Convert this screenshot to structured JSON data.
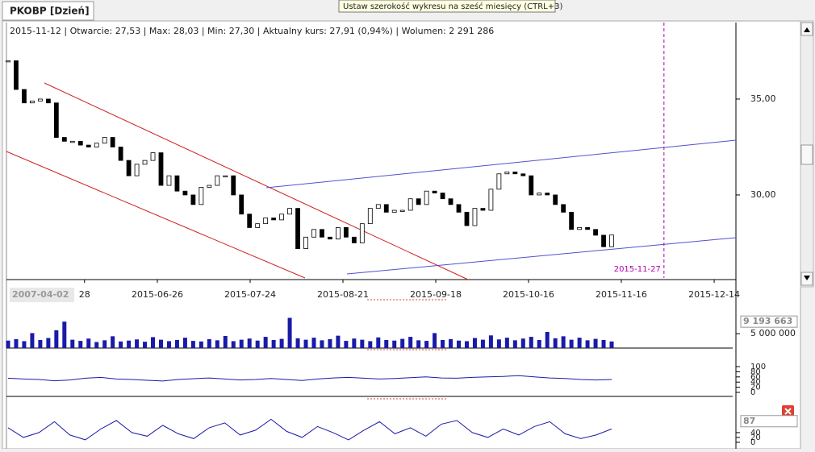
{
  "window": {
    "tab": "PKOBP [Dzień]",
    "tooltip": "Ustaw szerokość wykresu na sześć miesięcy (CTRL+3)",
    "info": [
      "2015-11-12",
      "Otwarcie: 27,53",
      "Max: 28,03",
      "Min: 27,30",
      "Aktualny kurs: 27,91 (0,94%)",
      "Wolumen: 2 291 286"
    ]
  },
  "chart_data": [
    {
      "type": "candlestick",
      "range_start": "2007-04-02",
      "up_color": "#ffffff",
      "down_color": "#000000",
      "values": [
        37,
        35.5,
        34.8,
        34.9,
        35,
        34.8,
        33,
        32.8,
        32.8,
        32.6,
        32.5,
        32.7,
        33,
        32.5,
        31.8,
        31,
        31.6,
        31.8,
        32.2,
        30.5,
        31,
        30.2,
        30,
        29.5,
        30.4,
        30.5,
        31,
        31,
        30,
        29,
        28.3,
        28.5,
        28.8,
        28.7,
        29,
        29.3,
        27.2,
        27.8,
        28.2,
        27.8,
        27.7,
        28.3,
        27.8,
        27.5,
        28.5,
        29.3,
        29.5,
        29.1,
        29.2,
        29.2,
        29.8,
        29.5,
        30.2,
        30.1,
        29.8,
        29.5,
        29.1,
        28.4,
        29.3,
        29.2,
        30.3,
        31.1,
        31.2,
        31.1,
        31,
        30,
        30.1,
        30,
        29.5,
        29.1,
        28.2,
        28.3,
        28.2,
        27.9,
        27.3,
        27.91
      ],
      "xlim": [
        -0.2,
        90.44
      ],
      "ylim": [
        25.67,
        38.99
      ],
      "yticks": [
        {
          "value": 35,
          "label": "35,00"
        },
        {
          "value": 30,
          "label": "30,00"
        }
      ],
      "xticks": [
        {
          "value": 9.5,
          "label": "28"
        },
        {
          "value": 18.55,
          "label": "2015-06-26"
        },
        {
          "value": 30.08,
          "label": "2015-07-24"
        },
        {
          "value": 41.61,
          "label": "2015-08-21"
        },
        {
          "value": 53.14,
          "label": "2015-09-18"
        },
        {
          "value": 64.67,
          "label": "2015-10-16"
        },
        {
          "value": 76.2,
          "label": "2015-11-16"
        },
        {
          "value": 87.74,
          "label": "2015-12-14"
        }
      ],
      "vline": {
        "value": 81.5,
        "label": "2015-11-27",
        "color": "#b000b0"
      }
    },
    {
      "type": "bar",
      "color": "#1a1aa8",
      "values": [
        2600000,
        3100000,
        2400000,
        5200000,
        2800000,
        3500000,
        6200000,
        9193663,
        2900000,
        2500000,
        3300000,
        2100000,
        2700000,
        4100000,
        2300000,
        2600000,
        3000000,
        2200000,
        3800000,
        2900000,
        2400000,
        2800000,
        3600000,
        2500000,
        2300000,
        3100000,
        2700000,
        4200000,
        2400000,
        2900000,
        3300000,
        2600000,
        3900000,
        2800000,
        3200000,
        10500000,
        3400000,
        2900000,
        3600000,
        2700000,
        3100000,
        4300000,
        2500000,
        3300000,
        2900000,
        2400000,
        3700000,
        2800000,
        2600000,
        3200000,
        3900000,
        2700000,
        2500000,
        5200000,
        2800000,
        3100000,
        2600000,
        2400000,
        3500000,
        2900000,
        4400000,
        3000000,
        3600000,
        2700000,
        3300000,
        3900000,
        2800000,
        5600000,
        3400000,
        4100000,
        2900000,
        3600000,
        2700000,
        3200000,
        2800000,
        2291286
      ],
      "xlim": [
        -0.2,
        90.44
      ],
      "ylim": [
        0,
        11200000
      ],
      "yticks": [
        {
          "value": 5000000,
          "label": "5 000 000"
        }
      ],
      "marker": {
        "value": 9193663,
        "label": "9 193 663"
      }
    },
    {
      "type": "line",
      "color": "#1a1aa8",
      "values": [
        55,
        52,
        50,
        45,
        48,
        55,
        58,
        52,
        50,
        47,
        44,
        50,
        53,
        56,
        52,
        48,
        50,
        54,
        50,
        46,
        52,
        56,
        58,
        55,
        52,
        54,
        57,
        60,
        56,
        55,
        58,
        60,
        62,
        65,
        60,
        56,
        54,
        50,
        48,
        50
      ],
      "xlim": [
        -0.1,
        47.03
      ],
      "ylim": [
        -15.6,
        109.4
      ],
      "yticks": [
        0,
        20,
        40,
        60,
        80,
        100
      ]
    },
    {
      "type": "line",
      "color": "#1a1aa8",
      "values": [
        60,
        20,
        40,
        85,
        30,
        10,
        55,
        90,
        40,
        25,
        70,
        35,
        15,
        60,
        80,
        30,
        50,
        95,
        45,
        20,
        65,
        40,
        10,
        50,
        85,
        35,
        60,
        25,
        75,
        90,
        40,
        20,
        55,
        30,
        65,
        85,
        35,
        15,
        30,
        55
      ],
      "xlim": [
        -0.1,
        47.03
      ],
      "ylim": [
        -26.7,
        146
      ],
      "yticks": [
        0,
        20,
        40
      ],
      "marker": {
        "value": 87,
        "label": "87"
      }
    }
  ]
}
